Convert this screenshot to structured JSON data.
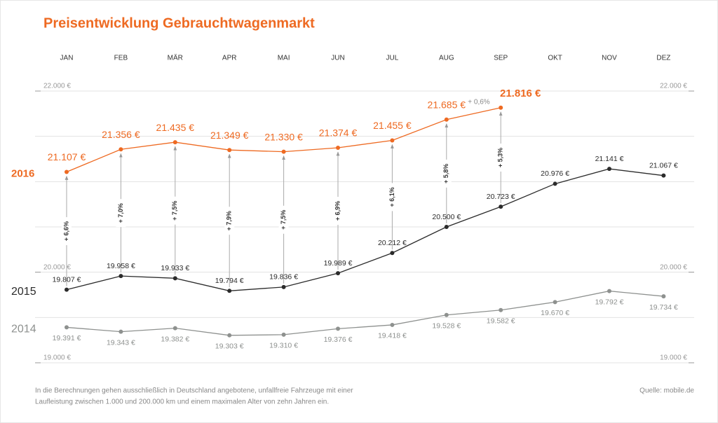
{
  "chart_data": {
    "type": "line",
    "title": "Preisentwicklung Gebrauchtwagenmarkt",
    "categories": [
      "JAN",
      "FEB",
      "MÄR",
      "APR",
      "MAI",
      "JUN",
      "JUL",
      "AUG",
      "SEP",
      "OKT",
      "NOV",
      "DEZ"
    ],
    "series": [
      {
        "name": "2016",
        "color": "#ee6a22",
        "values": [
          21107,
          21356,
          21435,
          21349,
          21330,
          21374,
          21455,
          21685,
          21816,
          null,
          null,
          null
        ],
        "value_labels": [
          "21.107 €",
          "21.356 €",
          "21.435 €",
          "21.349 €",
          "21.330 €",
          "21.374 €",
          "21.455 €",
          "21.685 €",
          "21.816 €",
          null,
          null,
          null
        ]
      },
      {
        "name": "2015",
        "color": "#2b2b2b",
        "values": [
          19807,
          19958,
          19933,
          19794,
          19836,
          19989,
          20212,
          20500,
          20723,
          20976,
          21141,
          21067
        ],
        "value_labels": [
          "19.807 €",
          "19.958 €",
          "19.933 €",
          "19.794 €",
          "19.836 €",
          "19.989 €",
          "20.212 €",
          "20.500 €",
          "20.723 €",
          "20.976 €",
          "21.141 €",
          "21.067 €"
        ]
      },
      {
        "name": "2014",
        "color": "#8e918f",
        "values": [
          19391,
          19343,
          19382,
          19303,
          19310,
          19376,
          19418,
          19528,
          19582,
          19670,
          19792,
          19734
        ],
        "value_labels": [
          "19.391 €",
          "19.343 €",
          "19.382 €",
          "19.303 €",
          "19.310 €",
          "19.376 €",
          "19.418 €",
          "19.528 €",
          "19.582 €",
          "19.670 €",
          "19.792 €",
          "19.734 €"
        ]
      }
    ],
    "changes": [
      6.6,
      7.0,
      7.5,
      7.9,
      7.5,
      6.9,
      6.1,
      5.8,
      5.3
    ],
    "change_labels": [
      "+ 6,6%",
      "+ 7,0%",
      "+ 7,5%",
      "+ 7,9%",
      "+ 7,5%",
      "+ 6,9%",
      "+ 6,1%",
      "+ 5,8%",
      "+ 5,3%"
    ],
    "annotation": "+ 0,6%",
    "ylim": [
      19000,
      22000
    ],
    "yticks": [
      {
        "value": 19000,
        "label": "19.000 €"
      },
      {
        "value": 20000,
        "label": "20.000 €"
      },
      {
        "value": 22000,
        "label": "22.000 €"
      }
    ],
    "minor_yticks": [
      19500,
      20500,
      21000,
      21500
    ],
    "grid": true,
    "footnote": [
      "In die Berechnungen gehen ausschließlich in Deutschland angebotene, unfallfreie Fahrzeuge mit einer",
      "Laufleistung zwischen 1.000 und 200.000 km und einem maximalen Alter von zehn Jahren ein."
    ],
    "source": "Quelle: mobile.de"
  }
}
